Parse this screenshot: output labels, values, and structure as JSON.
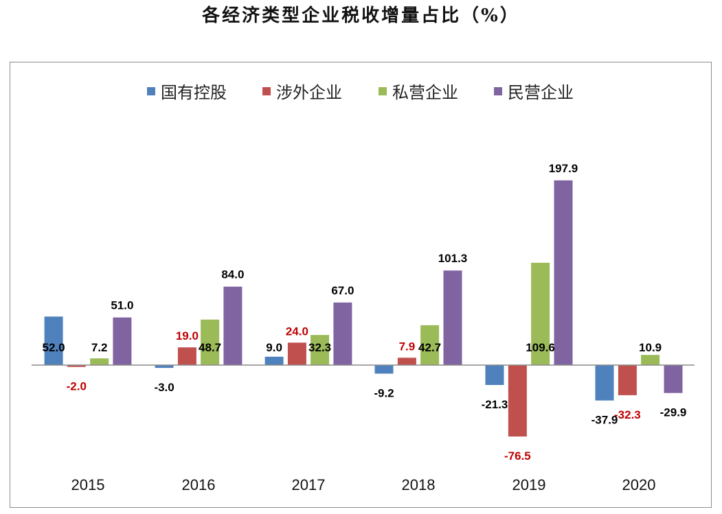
{
  "chart_data": {
    "type": "bar",
    "title": "各经济类型企业税收增量占比（%）",
    "categories": [
      "2015",
      "2016",
      "2017",
      "2018",
      "2019",
      "2020"
    ],
    "series": [
      {
        "name": "国有控股",
        "color": "#4f81bd",
        "values": [
          52.0,
          -3.0,
          9.0,
          -9.2,
          -21.3,
          -37.9
        ],
        "labels": [
          "52.0",
          "-3.0",
          "9.0",
          "-9.2",
          "-21.3",
          "-37.9"
        ]
      },
      {
        "name": "涉外企业",
        "color": "#c0504d",
        "values": [
          -2.0,
          19.0,
          24.0,
          7.9,
          -76.5,
          -32.3
        ],
        "labels": [
          "-2.0",
          "19.0",
          "24.0",
          "7.9",
          "-76.5",
          "-32.3"
        ]
      },
      {
        "name": "私营企业",
        "color": "#9bbb59",
        "values": [
          7.2,
          48.7,
          32.3,
          42.7,
          109.6,
          10.9
        ],
        "labels": [
          "7.2",
          "48.7",
          "32.3",
          "42.7",
          "109.6",
          "10.9"
        ]
      },
      {
        "name": "民营企业",
        "color": "#8064a2",
        "values": [
          51.0,
          84.0,
          67.0,
          101.3,
          197.9,
          -29.9
        ],
        "labels": [
          "51.0",
          "84.0",
          "67.0",
          "101.3",
          "197.9",
          "-29.9"
        ]
      }
    ],
    "legend_position": "top",
    "grid": false,
    "label_colors": {
      "default": "#000000",
      "涉外企业": "#c00000"
    }
  }
}
